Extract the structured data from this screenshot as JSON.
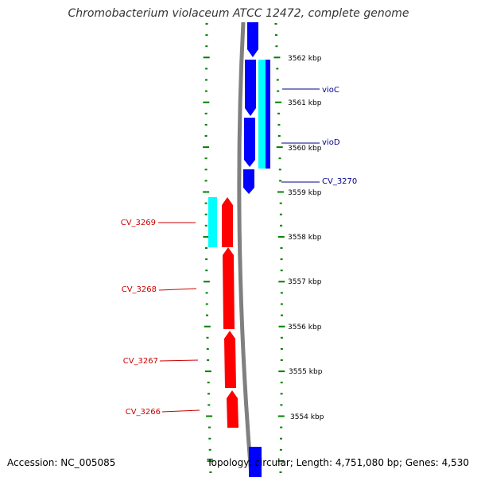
{
  "title": "Chromobacterium violaceum ATCC 12472, complete genome",
  "accession": "Accession: NC_005085",
  "summary": "Topology: circular; Length: 4,751,080 bp; Genes: 4,530",
  "colors": {
    "reverse_gene": "#0000ff",
    "forward_gene": "#ff0000",
    "cds": "#00ffff",
    "backbone": "#808080",
    "ticks": "#008000",
    "label_blue": "#00008b",
    "label_red": "#cc0000"
  },
  "scale": {
    "unit": "kbp",
    "ticks": [
      {
        "kbp": 3562,
        "label": "3562 kbp"
      },
      {
        "kbp": 3561,
        "label": "3561 kbp"
      },
      {
        "kbp": 3560,
        "label": "3560 kbp"
      },
      {
        "kbp": 3559,
        "label": "3559 kbp"
      },
      {
        "kbp": 3558,
        "label": "3558 kbp"
      },
      {
        "kbp": 3557,
        "label": "3557 kbp"
      },
      {
        "kbp": 3556,
        "label": "3556 kbp"
      },
      {
        "kbp": 3555,
        "label": "3555 kbp"
      },
      {
        "kbp": 3554,
        "label": "3554 kbp"
      }
    ]
  },
  "genes": [
    {
      "name": "vioC",
      "strand": "reverse"
    },
    {
      "name": "vioD",
      "strand": "reverse"
    },
    {
      "name": "CV_3270",
      "strand": "reverse"
    },
    {
      "name": "CV_3269",
      "strand": "forward"
    },
    {
      "name": "CV_3268",
      "strand": "forward"
    },
    {
      "name": "CV_3267",
      "strand": "forward"
    },
    {
      "name": "CV_3266",
      "strand": "forward"
    }
  ]
}
